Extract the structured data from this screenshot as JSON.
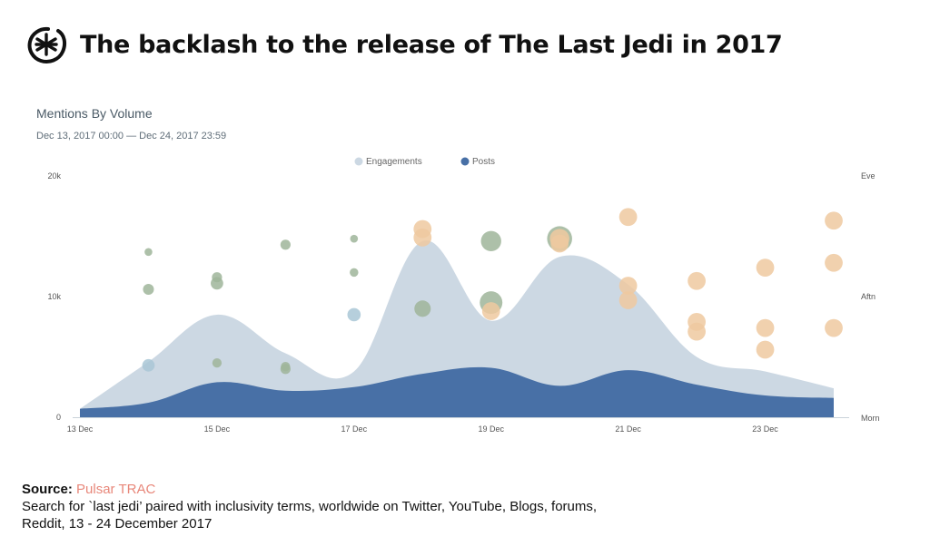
{
  "header": {
    "logo_icon": "asterisk-circle-logo-icon",
    "title": "The backlash to the release of The Last Jedi in 2017"
  },
  "panel": {
    "title": "Mentions By Volume",
    "date_range": "Dec 13, 2017 00:00 — Dec 24, 2017 23:59"
  },
  "footer": {
    "source_label": "Source:",
    "source_name": "Pulsar TRAC",
    "description_line1": "Search for `last jedi’ paired with inclusivity terms, worldwide on Twitter, YouTube, Blogs, forums,",
    "description_line2": "Reddit, 13 - 24 December 2017"
  },
  "colors": {
    "engagements": "#ccd8e3",
    "posts": "#4870a6",
    "bubble_green": "#9fb59a",
    "bubble_blue": "#a9c7d6",
    "bubble_orange": "#efc9a0",
    "source_link": "#e8877a"
  },
  "chart_data": {
    "type": "area",
    "title": "Mentions By Volume",
    "x": [
      13,
      14,
      15,
      16,
      17,
      18,
      19,
      20,
      21,
      22,
      23,
      24
    ],
    "xlim": [
      13,
      24
    ],
    "x_ticks": [
      {
        "value": 13,
        "label": "13 Dec"
      },
      {
        "value": 15,
        "label": "15 Dec"
      },
      {
        "value": 17,
        "label": "17 Dec"
      },
      {
        "value": 19,
        "label": "19 Dec"
      },
      {
        "value": 21,
        "label": "21 Dec"
      },
      {
        "value": 23,
        "label": "23 Dec"
      }
    ],
    "ylim": [
      0,
      20000
    ],
    "y_ticks": [
      {
        "value": 0,
        "label": "0"
      },
      {
        "value": 10000,
        "label": "10k"
      },
      {
        "value": 20000,
        "label": "20k"
      }
    ],
    "y2_ticks": [
      {
        "value": 0,
        "label": "Morn"
      },
      {
        "value": 1,
        "label": "Aftn"
      },
      {
        "value": 2,
        "label": "Eve"
      }
    ],
    "y2lim": [
      0,
      2
    ],
    "legend": {
      "placement": "top-center",
      "items": [
        {
          "name": "Engagements",
          "color": "#ccd8e3"
        },
        {
          "name": "Posts",
          "color": "#4870a6"
        }
      ]
    },
    "series": [
      {
        "name": "Engagements",
        "values": [
          700,
          4600,
          8500,
          5300,
          3800,
          14600,
          8000,
          13300,
          11000,
          5000,
          3800,
          2400
        ]
      },
      {
        "name": "Posts",
        "values": [
          700,
          1200,
          2900,
          2200,
          2500,
          3600,
          4100,
          2600,
          3900,
          2700,
          1800,
          1600
        ]
      }
    ],
    "bubbles": [
      {
        "day": 14,
        "time": 1.37,
        "size": 1,
        "color": "green"
      },
      {
        "day": 14,
        "time": 1.06,
        "size": 1.4,
        "color": "green"
      },
      {
        "day": 14,
        "time": 0.43,
        "size": 1.6,
        "color": "blue"
      },
      {
        "day": 15,
        "time": 1.16,
        "size": 1.3,
        "color": "green"
      },
      {
        "day": 15,
        "time": 1.11,
        "size": 1.6,
        "color": "green"
      },
      {
        "day": 15,
        "time": 0.45,
        "size": 1.2,
        "color": "green"
      },
      {
        "day": 16,
        "time": 1.43,
        "size": 1.3,
        "color": "green"
      },
      {
        "day": 16,
        "time": 0.42,
        "size": 1.2,
        "color": "green"
      },
      {
        "day": 16,
        "time": 0.4,
        "size": 1.3,
        "color": "green"
      },
      {
        "day": 17,
        "time": 1.48,
        "size": 1,
        "color": "green"
      },
      {
        "day": 17,
        "time": 1.2,
        "size": 1.1,
        "color": "green"
      },
      {
        "day": 17,
        "time": 0.85,
        "size": 1.7,
        "color": "blue"
      },
      {
        "day": 18,
        "time": 1.56,
        "size": 2.3,
        "color": "orange"
      },
      {
        "day": 18,
        "time": 1.49,
        "size": 2.3,
        "color": "orange"
      },
      {
        "day": 18,
        "time": 0.9,
        "size": 2.1,
        "color": "green"
      },
      {
        "day": 19,
        "time": 1.46,
        "size": 2.6,
        "color": "green"
      },
      {
        "day": 19,
        "time": 0.95,
        "size": 2.9,
        "color": "green"
      },
      {
        "day": 19,
        "time": 0.88,
        "size": 2.3,
        "color": "orange"
      },
      {
        "day": 20,
        "time": 1.48,
        "size": 3.2,
        "color": "green"
      },
      {
        "day": 20,
        "time": 1.48,
        "size": 2.5,
        "color": "orange"
      },
      {
        "day": 20,
        "time": 1.44,
        "size": 2.3,
        "color": "orange"
      },
      {
        "day": 21,
        "time": 1.66,
        "size": 2.3,
        "color": "orange"
      },
      {
        "day": 21,
        "time": 1.09,
        "size": 2.3,
        "color": "orange"
      },
      {
        "day": 21,
        "time": 0.97,
        "size": 2.3,
        "color": "orange"
      },
      {
        "day": 22,
        "time": 1.13,
        "size": 2.3,
        "color": "orange"
      },
      {
        "day": 22,
        "time": 0.79,
        "size": 2.3,
        "color": "orange"
      },
      {
        "day": 22,
        "time": 0.71,
        "size": 2.3,
        "color": "orange"
      },
      {
        "day": 23,
        "time": 1.24,
        "size": 2.3,
        "color": "orange"
      },
      {
        "day": 23,
        "time": 0.74,
        "size": 2.3,
        "color": "orange"
      },
      {
        "day": 23,
        "time": 0.56,
        "size": 2.3,
        "color": "orange"
      },
      {
        "day": 24,
        "time": 1.63,
        "size": 2.3,
        "color": "orange"
      },
      {
        "day": 24,
        "time": 1.28,
        "size": 2.3,
        "color": "orange"
      },
      {
        "day": 24,
        "time": 0.74,
        "size": 2.3,
        "color": "orange"
      }
    ]
  }
}
